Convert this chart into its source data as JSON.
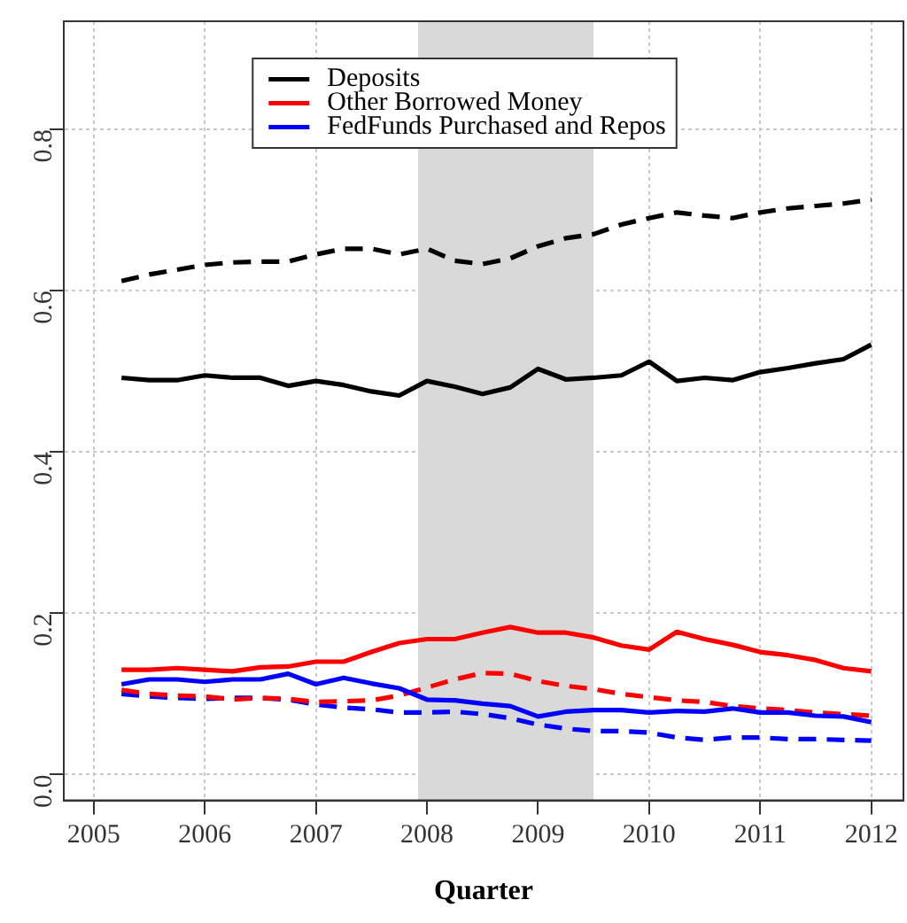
{
  "chart_data": {
    "type": "line",
    "xlabel": "Quarter",
    "x": [
      2005.25,
      2005.5,
      2005.75,
      2006,
      2006.25,
      2006.5,
      2006.75,
      2007,
      2007.25,
      2007.5,
      2007.75,
      2008,
      2008.25,
      2008.5,
      2008.75,
      2009,
      2009.25,
      2009.5,
      2009.75,
      2010,
      2010.25,
      2010.5,
      2010.75,
      2011,
      2011.25,
      2011.5,
      2011.75,
      2012
    ],
    "series": [
      {
        "name": "Deposits",
        "color": "#000000",
        "line_style": "solid",
        "values": [
          0.492,
          0.489,
          0.489,
          0.495,
          0.492,
          0.492,
          0.482,
          0.488,
          0.483,
          0.475,
          0.47,
          0.488,
          0.481,
          0.472,
          0.48,
          0.503,
          0.49,
          0.492,
          0.495,
          0.512,
          0.488,
          0.492,
          0.489,
          0.499,
          0.504,
          0.51,
          0.515,
          0.533
        ]
      },
      {
        "name": "Other Borrowed Money",
        "color": "#ff0000",
        "line_style": "solid",
        "values": [
          0.13,
          0.13,
          0.132,
          0.13,
          0.128,
          0.133,
          0.134,
          0.14,
          0.14,
          0.152,
          0.163,
          0.168,
          0.168,
          0.176,
          0.183,
          0.176,
          0.176,
          0.17,
          0.16,
          0.155,
          0.177,
          0.168,
          0.161,
          0.152,
          0.148,
          0.142,
          0.132,
          0.128
        ]
      },
      {
        "name": "FedFunds Purchased and Repos",
        "color": "#0000ff",
        "line_style": "solid",
        "values": [
          0.112,
          0.118,
          0.118,
          0.115,
          0.118,
          0.118,
          0.125,
          0.112,
          0.12,
          0.113,
          0.107,
          0.093,
          0.092,
          0.088,
          0.085,
          0.072,
          0.078,
          0.08,
          0.08,
          0.077,
          0.079,
          0.078,
          0.082,
          0.077,
          0.077,
          0.073,
          0.072,
          0.065
        ]
      },
      {
        "color": "#000000",
        "line_style": "dashed",
        "values": [
          0.612,
          0.62,
          0.626,
          0.632,
          0.635,
          0.636,
          0.636,
          0.645,
          0.652,
          0.652,
          0.645,
          0.652,
          0.637,
          0.633,
          0.64,
          0.655,
          0.665,
          0.67,
          0.682,
          0.69,
          0.697,
          0.693,
          0.69,
          0.697,
          0.702,
          0.705,
          0.708,
          0.713
        ]
      },
      {
        "color": "#ff0000",
        "line_style": "dashed",
        "values": [
          0.105,
          0.1,
          0.098,
          0.097,
          0.093,
          0.095,
          0.094,
          0.09,
          0.091,
          0.092,
          0.098,
          0.108,
          0.118,
          0.126,
          0.125,
          0.116,
          0.11,
          0.106,
          0.1,
          0.096,
          0.092,
          0.09,
          0.085,
          0.082,
          0.08,
          0.077,
          0.075,
          0.073
        ]
      },
      {
        "color": "#0000ff",
        "line_style": "dashed",
        "values": [
          0.1,
          0.097,
          0.095,
          0.094,
          0.095,
          0.095,
          0.093,
          0.087,
          0.083,
          0.081,
          0.077,
          0.077,
          0.078,
          0.075,
          0.07,
          0.062,
          0.057,
          0.054,
          0.054,
          0.052,
          0.046,
          0.043,
          0.046,
          0.046,
          0.044,
          0.044,
          0.043,
          0.042
        ]
      }
    ],
    "xlim": [
      2004.73,
      2012.29
    ],
    "xticks": [
      2005,
      2006,
      2007,
      2008,
      2009,
      2010,
      2011,
      2012
    ],
    "ylim": [
      -0.032,
      0.934
    ],
    "yticks": [
      {
        "value": 0,
        "label": "0.0"
      },
      {
        "value": 0.2,
        "label": "0.2"
      },
      {
        "value": 0.4,
        "label": "0.4"
      },
      {
        "value": 0.6,
        "label": "0.6"
      },
      {
        "value": 0.8,
        "label": "0.8"
      }
    ],
    "bands": [
      {
        "axis": "x",
        "from": 2007.92,
        "to": 2009.5,
        "color": "#d9d9d9"
      }
    ],
    "grid": true,
    "legend": "top",
    "marker": "none"
  }
}
